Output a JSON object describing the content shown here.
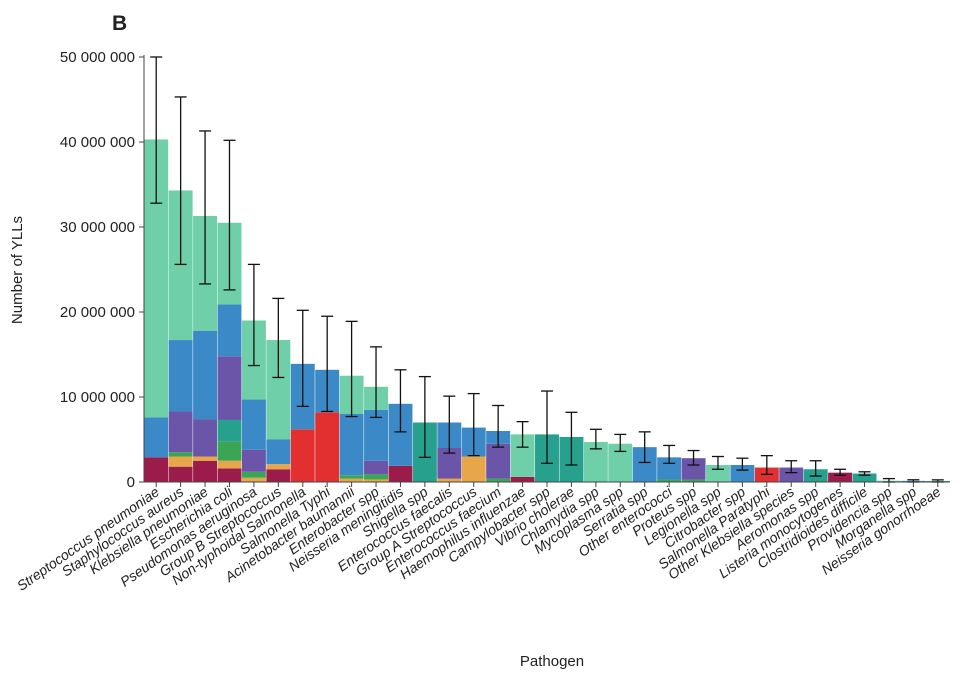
{
  "chart_data": {
    "type": "bar",
    "stacked": true,
    "panel_label": "B",
    "title": "",
    "xlabel": "Pathogen",
    "ylabel": "Number of YLLs",
    "ylim": [
      0,
      50000000
    ],
    "yticks": [
      0,
      10000000,
      20000000,
      30000000,
      40000000,
      50000000
    ],
    "ytick_labels": [
      "0",
      "10 000 000",
      "20 000 000",
      "30 000 000",
      "40 000 000",
      "50 000 000"
    ],
    "grid": false,
    "legend": "none",
    "palette": {
      "a": "#9b1b4b",
      "b": "#e23030",
      "c": "#e8a64a",
      "d": "#3aa655",
      "e": "#6a55a8",
      "f": "#3b8ac7",
      "g": "#27a08e",
      "h": "#6ecfa8"
    },
    "categories": [
      "Streptococcus pneumoniae",
      "Staphylococcus aureus",
      "Klebsiella pneumoniae",
      "Escherichia coli",
      "Pseudomonas aeruginosa",
      "Group B Streptococcus",
      "Non-typhoidal Salmonella",
      "Salmonella Typhi",
      "Acinetobacter baumannii",
      "Enterobacter spp",
      "Neisseria meningitidis",
      "Shigella spp",
      "Enterococcus faecalis",
      "Group A Streptococcus",
      "Enterococcus faecium",
      "Haemophilus influenzae",
      "Campylobacter spp",
      "Vibrio cholerae",
      "Chlamydia spp",
      "Mycoplasma spp",
      "Serratia spp",
      "Other enterococci",
      "Proteus spp",
      "Legionella spp",
      "Citrobacter spp",
      "Salmonella Paratyphi",
      "Other Klebsiella species",
      "Aeromonas spp",
      "Listeria monocytogenes",
      "Clostridioides difficile",
      "Providencia spp",
      "Morganella spp",
      "Neisseria gonorrhoeae"
    ],
    "totals": [
      40300000,
      34300000,
      31300000,
      30500000,
      19000000,
      16700000,
      13900000,
      13200000,
      12500000,
      11200000,
      9200000,
      7000000,
      7000000,
      6400000,
      6000000,
      5600000,
      5600000,
      5300000,
      4700000,
      4500000,
      4100000,
      2900000,
      2800000,
      2000000,
      2000000,
      1700000,
      1700000,
      1500000,
      1100000,
      1000000,
      150000,
      130000,
      110000
    ],
    "errors": [
      [
        32800000,
        50000000
      ],
      [
        25600000,
        45300000
      ],
      [
        23300000,
        41300000
      ],
      [
        22600000,
        40200000
      ],
      [
        13700000,
        25600000
      ],
      [
        12300000,
        21600000
      ],
      [
        8900000,
        20200000
      ],
      [
        8300000,
        19500000
      ],
      [
        7700000,
        18900000
      ],
      [
        7600000,
        15900000
      ],
      [
        5900000,
        13200000
      ],
      [
        2900000,
        12400000
      ],
      [
        3400000,
        10100000
      ],
      [
        3100000,
        10400000
      ],
      [
        4100000,
        9000000
      ],
      [
        4100000,
        7100000
      ],
      [
        2200000,
        10700000
      ],
      [
        2000000,
        8200000
      ],
      [
        3900000,
        6200000
      ],
      [
        3600000,
        5600000
      ],
      [
        2300000,
        5900000
      ],
      [
        2200000,
        4300000
      ],
      [
        2000000,
        3700000
      ],
      [
        1500000,
        3000000
      ],
      [
        1400000,
        2800000
      ],
      [
        900000,
        3100000
      ],
      [
        1100000,
        2500000
      ],
      [
        700000,
        2500000
      ],
      [
        800000,
        1500000
      ],
      [
        800000,
        1200000
      ],
      [
        0,
        400000
      ],
      [
        0,
        260000
      ],
      [
        0,
        250000
      ]
    ],
    "segments": [
      [
        [
          2900000,
          "a"
        ],
        [
          4700000,
          "f"
        ],
        [
          32700000,
          "h"
        ]
      ],
      [
        [
          1800000,
          "a"
        ],
        [
          1200000,
          "c"
        ],
        [
          500000,
          "d"
        ],
        [
          4800000,
          "e"
        ],
        [
          8400000,
          "f"
        ],
        [
          17600000,
          "h"
        ]
      ],
      [
        [
          2500000,
          "a"
        ],
        [
          500000,
          "c"
        ],
        [
          4400000,
          "e"
        ],
        [
          10400000,
          "f"
        ],
        [
          13500000,
          "h"
        ]
      ],
      [
        [
          1600000,
          "a"
        ],
        [
          900000,
          "c"
        ],
        [
          2300000,
          "d"
        ],
        [
          2500000,
          "g"
        ],
        [
          7500000,
          "e"
        ],
        [
          6100000,
          "f"
        ],
        [
          9600000,
          "h"
        ]
      ],
      [
        [
          500000,
          "c"
        ],
        [
          700000,
          "d"
        ],
        [
          2600000,
          "e"
        ],
        [
          5900000,
          "f"
        ],
        [
          9300000,
          "h"
        ]
      ],
      [
        [
          1500000,
          "a"
        ],
        [
          600000,
          "c"
        ],
        [
          2900000,
          "f"
        ],
        [
          11700000,
          "h"
        ]
      ],
      [
        [
          6200000,
          "b"
        ],
        [
          7700000,
          "f"
        ]
      ],
      [
        [
          8200000,
          "b"
        ],
        [
          5000000,
          "f"
        ]
      ],
      [
        [
          400000,
          "c"
        ],
        [
          400000,
          "d"
        ],
        [
          7200000,
          "f"
        ],
        [
          4500000,
          "h"
        ]
      ],
      [
        [
          300000,
          "c"
        ],
        [
          600000,
          "d"
        ],
        [
          1600000,
          "e"
        ],
        [
          6000000,
          "f"
        ],
        [
          2700000,
          "h"
        ]
      ],
      [
        [
          1900000,
          "a"
        ],
        [
          7300000,
          "f"
        ]
      ],
      [
        [
          7000000,
          "g"
        ]
      ],
      [
        [
          400000,
          "c"
        ],
        [
          3600000,
          "e"
        ],
        [
          3000000,
          "f"
        ]
      ],
      [
        [
          3000000,
          "c"
        ],
        [
          3400000,
          "f"
        ]
      ],
      [
        [
          400000,
          "d"
        ],
        [
          4100000,
          "e"
        ],
        [
          1500000,
          "f"
        ]
      ],
      [
        [
          600000,
          "a"
        ],
        [
          5000000,
          "h"
        ]
      ],
      [
        [
          5600000,
          "g"
        ]
      ],
      [
        [
          5300000,
          "g"
        ]
      ],
      [
        [
          4700000,
          "h"
        ]
      ],
      [
        [
          4500000,
          "h"
        ]
      ],
      [
        [
          4100000,
          "f"
        ]
      ],
      [
        [
          300000,
          "d"
        ],
        [
          2600000,
          "f"
        ]
      ],
      [
        [
          300000,
          "d"
        ],
        [
          2500000,
          "e"
        ]
      ],
      [
        [
          2000000,
          "h"
        ]
      ],
      [
        [
          2000000,
          "f"
        ]
      ],
      [
        [
          1700000,
          "b"
        ]
      ],
      [
        [
          1700000,
          "e"
        ]
      ],
      [
        [
          1500000,
          "g"
        ]
      ],
      [
        [
          1100000,
          "a"
        ]
      ],
      [
        [
          1000000,
          "g"
        ]
      ],
      [
        [
          150000,
          "h"
        ]
      ],
      [
        [
          130000,
          "f"
        ]
      ],
      [
        [
          110000,
          "g"
        ]
      ]
    ]
  }
}
